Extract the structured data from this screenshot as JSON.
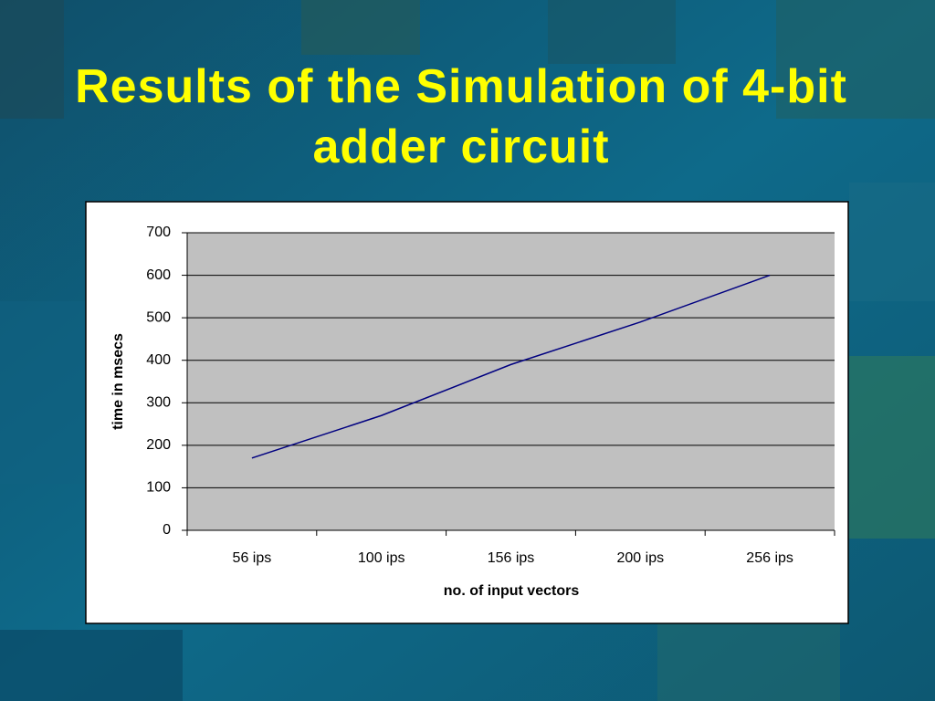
{
  "chart_data": {
    "type": "line",
    "title": "Results of the Simulation of 4-bit adder circuit",
    "x_label": "no. of input vectors",
    "y_label": "time in msecs",
    "categories": [
      "56 ips",
      "100 ips",
      "156 ips",
      "200 ips",
      "256 ips"
    ],
    "series": [
      {
        "name": "time",
        "color": "#000080",
        "values": [
          170,
          270,
          390,
          490,
          600
        ]
      }
    ],
    "ylim": [
      0,
      700
    ],
    "yticks": [
      0,
      100,
      200,
      300,
      400,
      500,
      600,
      700
    ],
    "grid": true
  }
}
